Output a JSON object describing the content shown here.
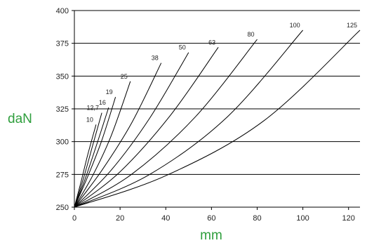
{
  "chart_data": {
    "type": "line",
    "title": "",
    "xlabel": "mm",
    "ylabel": "daN",
    "xlim": [
      0,
      125
    ],
    "ylim": [
      250,
      400
    ],
    "xticks": [
      0,
      20,
      40,
      60,
      80,
      100,
      120
    ],
    "yticks": [
      250,
      275,
      300,
      325,
      350,
      375,
      400
    ],
    "grid": "horizontal",
    "axis_title_color": "#2e9e3c",
    "series": [
      {
        "name": "10",
        "x": [
          0,
          3,
          6,
          9.5
        ],
        "y": [
          250,
          270,
          291,
          313
        ]
      },
      {
        "name": "12,7",
        "x": [
          0,
          4,
          8,
          12
        ],
        "y": [
          250,
          272,
          297,
          322
        ]
      },
      {
        "name": "16",
        "x": [
          0,
          5,
          10,
          15
        ],
        "y": [
          250,
          273,
          299,
          326
        ]
      },
      {
        "name": "19",
        "x": [
          0,
          6,
          12,
          18
        ],
        "y": [
          250,
          274,
          301,
          334
        ]
      },
      {
        "name": "25",
        "x": [
          0,
          8,
          16,
          24.5
        ],
        "y": [
          250,
          274,
          304,
          346
        ]
      },
      {
        "name": "38",
        "x": [
          0,
          12,
          25,
          38
        ],
        "y": [
          250,
          278,
          314,
          360
        ]
      },
      {
        "name": "50",
        "x": [
          0,
          16,
          33,
          50
        ],
        "y": [
          250,
          278,
          318,
          368
        ]
      },
      {
        "name": "63",
        "x": [
          0,
          20,
          42,
          63
        ],
        "y": [
          250,
          277,
          320,
          372
        ]
      },
      {
        "name": "80",
        "x": [
          0,
          25,
          53,
          80
        ],
        "y": [
          250,
          275,
          319,
          378
        ]
      },
      {
        "name": "100",
        "x": [
          0,
          33,
          67,
          100
        ],
        "y": [
          250,
          275,
          319,
          385
        ]
      },
      {
        "name": "125",
        "x": [
          0,
          40,
          83,
          125
        ],
        "y": [
          250,
          274,
          316,
          385
        ]
      }
    ]
  }
}
